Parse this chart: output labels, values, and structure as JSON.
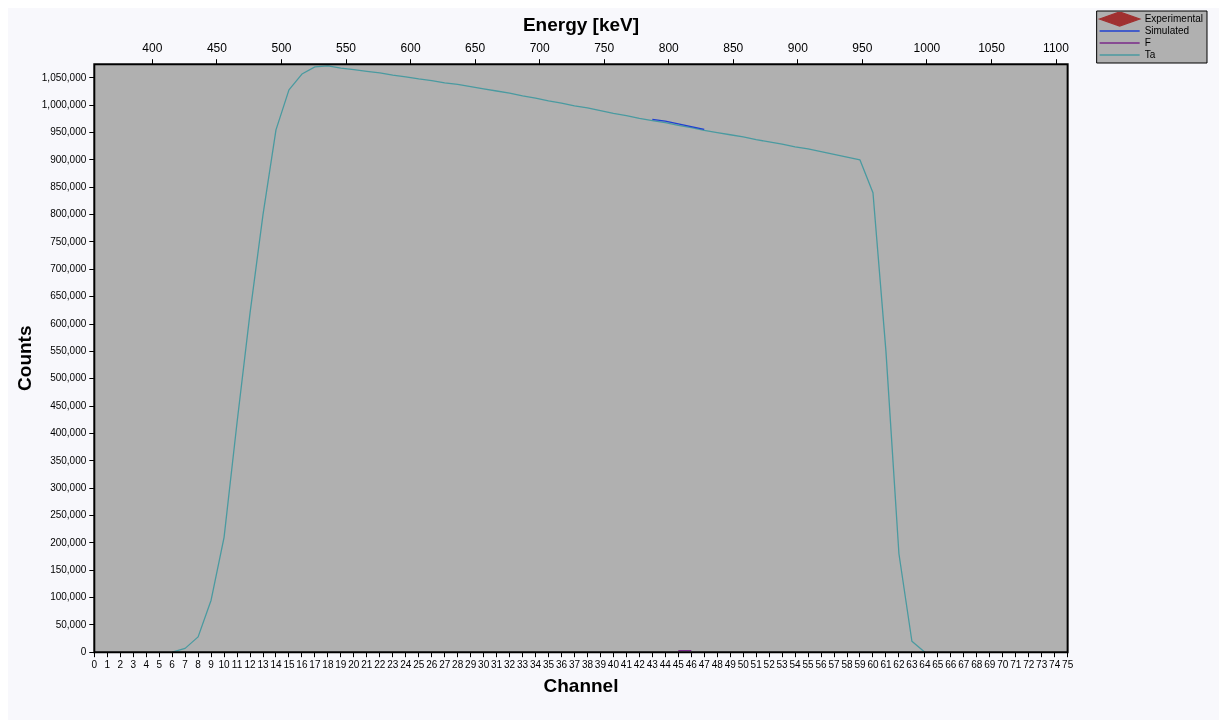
{
  "chart_data": {
    "type": "line",
    "xlabel": "Channel",
    "x2label": "Energy [keV]",
    "ylabel": "Counts",
    "x": [
      6,
      7,
      8,
      9,
      10,
      11,
      12,
      13,
      14,
      15,
      16,
      17,
      18,
      19,
      20,
      21,
      22,
      23,
      24,
      25,
      26,
      27,
      28,
      29,
      30,
      31,
      32,
      33,
      34,
      35,
      36,
      37,
      38,
      39,
      40,
      41,
      42,
      43,
      44,
      45,
      46,
      47,
      48,
      49,
      50,
      51,
      52,
      53,
      54,
      55,
      56,
      57,
      58,
      59,
      60,
      61,
      62,
      63,
      64
    ],
    "xlim": [
      0,
      75
    ],
    "xticks": [
      0,
      1,
      2,
      3,
      4,
      5,
      6,
      7,
      8,
      9,
      10,
      11,
      12,
      13,
      14,
      15,
      16,
      17,
      18,
      19,
      20,
      21,
      22,
      23,
      24,
      25,
      26,
      27,
      28,
      29,
      30,
      31,
      32,
      33,
      34,
      35,
      36,
      37,
      38,
      39,
      40,
      41,
      42,
      43,
      44,
      45,
      46,
      47,
      48,
      49,
      50,
      51,
      52,
      53,
      54,
      55,
      56,
      57,
      58,
      59,
      60,
      61,
      62,
      63,
      64,
      65,
      66,
      67,
      68,
      69,
      70,
      71,
      72,
      73,
      74,
      75
    ],
    "x2lim": [
      355,
      1109
    ],
    "x2ticks": [
      400,
      450,
      500,
      550,
      600,
      650,
      700,
      750,
      800,
      850,
      900,
      950,
      1000,
      1050,
      1100
    ],
    "ylim": [
      0,
      1075000
    ],
    "yticks": [
      {
        "value": 0,
        "label": "0"
      },
      {
        "value": 50000,
        "label": "50,000"
      },
      {
        "value": 100000,
        "label": "100,000"
      },
      {
        "value": 150000,
        "label": "150,000"
      },
      {
        "value": 200000,
        "label": "200,000"
      },
      {
        "value": 250000,
        "label": "250,000"
      },
      {
        "value": 300000,
        "label": "300,000"
      },
      {
        "value": 350000,
        "label": "350,000"
      },
      {
        "value": 400000,
        "label": "400,000"
      },
      {
        "value": 450000,
        "label": "450,000"
      },
      {
        "value": 500000,
        "label": "500,000"
      },
      {
        "value": 550000,
        "label": "550,000"
      },
      {
        "value": 600000,
        "label": "600,000"
      },
      {
        "value": 650000,
        "label": "650,000"
      },
      {
        "value": 700000,
        "label": "700,000"
      },
      {
        "value": 750000,
        "label": "750,000"
      },
      {
        "value": 800000,
        "label": "800,000"
      },
      {
        "value": 850000,
        "label": "850,000"
      },
      {
        "value": 900000,
        "label": "900,000"
      },
      {
        "value": 950000,
        "label": "950,000"
      },
      {
        "value": 1000000,
        "label": "1,000,000"
      },
      {
        "value": 1050000,
        "label": "1,050,000"
      }
    ],
    "grid": false,
    "legend": "top right",
    "marker": "none",
    "line_style": "solid",
    "series": [
      {
        "name": "Experimental",
        "color": "#a03030",
        "marker": "diamond",
        "values": [
          null,
          null,
          null,
          null,
          null,
          null,
          null,
          null,
          null,
          null,
          null,
          null,
          null,
          null,
          null,
          null,
          null,
          null,
          null,
          null,
          null,
          null,
          null,
          null,
          null,
          null,
          null,
          null,
          null,
          null,
          null,
          null,
          null,
          null,
          null,
          null,
          null,
          null,
          null,
          null,
          null,
          null,
          null,
          null,
          null,
          null,
          null,
          null,
          null,
          null,
          null,
          null,
          null,
          null,
          null,
          null,
          null,
          null,
          null
        ]
      },
      {
        "name": "Simulated",
        "color": "#2040d0",
        "x": [
          43,
          44,
          45,
          46,
          47
        ],
        "values": [
          974000,
          971000,
          966000,
          961000,
          956000
        ]
      },
      {
        "name": "F",
        "color": "#7a2a8a",
        "x": [
          45,
          46
        ],
        "values": [
          3000,
          3000
        ]
      },
      {
        "name": "Ta",
        "color": "#4a9aa0",
        "values": [
          0,
          7000,
          28000,
          95000,
          210000,
          420000,
          620000,
          800000,
          955000,
          1028000,
          1057000,
          1070000,
          1072000,
          1068000,
          1065000,
          1062000,
          1059000,
          1055000,
          1052000,
          1048000,
          1045000,
          1041000,
          1038000,
          1034000,
          1030000,
          1026000,
          1022000,
          1017000,
          1013000,
          1008000,
          1004000,
          999000,
          995000,
          990000,
          985000,
          981000,
          976000,
          972000,
          968000,
          963000,
          959000,
          954000,
          950000,
          946000,
          942000,
          937000,
          933000,
          929000,
          924000,
          920000,
          915000,
          910000,
          905000,
          900000,
          840000,
          550000,
          180000,
          20000,
          0
        ]
      }
    ]
  }
}
